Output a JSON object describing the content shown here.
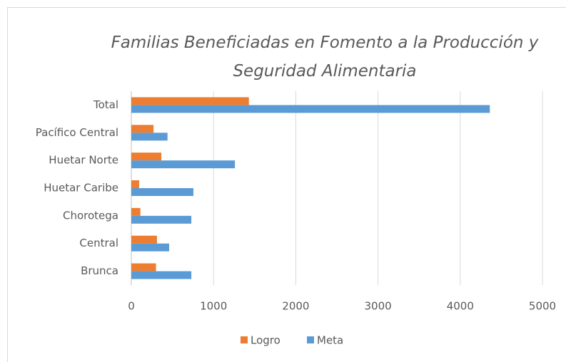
{
  "chart_data": {
    "type": "bar",
    "orientation": "horizontal",
    "title": "Familias Beneficiadas en Fomento a la Producción y Seguridad Alimentaria",
    "categories": [
      "Total",
      "Pacífico Central",
      "Huetar Norte",
      "Huetar Caribe",
      "Chorotega",
      "Central",
      "Brunca"
    ],
    "series": [
      {
        "name": "Logro",
        "color": "#ed7d31",
        "values": [
          1430,
          270,
          365,
          95,
          110,
          312,
          300
        ]
      },
      {
        "name": "Meta",
        "color": "#5b9bd5",
        "values": [
          4360,
          440,
          1260,
          755,
          730,
          460,
          730
        ]
      }
    ],
    "xlim": [
      0,
      5000
    ],
    "xticks": [
      0,
      1000,
      2000,
      3000,
      4000,
      5000
    ],
    "grid": true,
    "legend": "bottom"
  }
}
